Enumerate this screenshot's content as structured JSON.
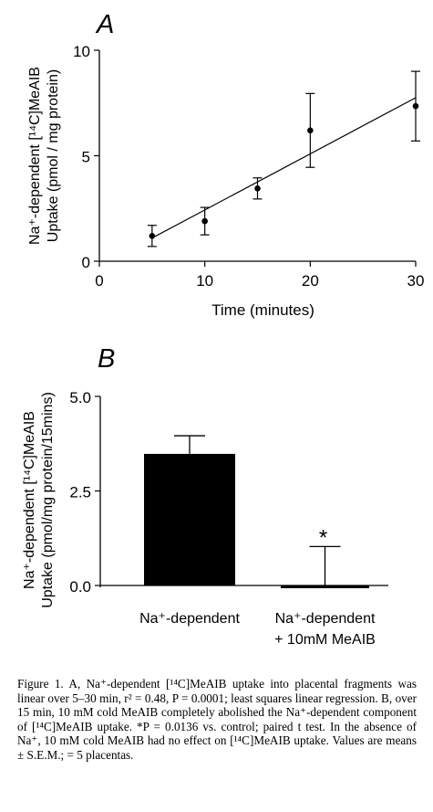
{
  "chart_data": [
    {
      "type": "scatter",
      "panel_letter": "A",
      "ylabel_line1": "Na⁺-dependent [¹⁴C]MeAIB",
      "ylabel_line2": "Uptake (pmol / mg protein)",
      "xlabel": "Time (minutes)",
      "xlim": [
        0,
        30
      ],
      "ylim": [
        0,
        10
      ],
      "xticks": [
        "0",
        "10",
        "20",
        "30"
      ],
      "yticks": [
        "0",
        "5",
        "10"
      ],
      "points": [
        {
          "x": 5,
          "y": 1.2,
          "err": 0.5
        },
        {
          "x": 10,
          "y": 1.9,
          "err": 0.65
        },
        {
          "x": 15,
          "y": 3.45,
          "err": 0.5
        },
        {
          "x": 20,
          "y": 6.2,
          "err": 1.75
        },
        {
          "x": 30,
          "y": 7.35,
          "err": 1.65
        }
      ],
      "regression_line": {
        "x": [
          5,
          30
        ],
        "y": [
          1.1,
          7.75
        ]
      }
    },
    {
      "type": "bar",
      "panel_letter": "B",
      "ylabel_line1": "Na⁺-dependent [¹⁴C]MeAIB",
      "ylabel_line2": "Uptake (pmol/mg protein/15mins)",
      "ylim": [
        0,
        5
      ],
      "yticks": [
        "0.0",
        "2.5",
        "5.0"
      ],
      "categories": [
        {
          "line1": "Na⁺-dependent",
          "line2": ""
        },
        {
          "line1": "Na⁺-dependent",
          "line2": "+ 10mM MeAIB"
        }
      ],
      "values": [
        3.48,
        -0.05
      ],
      "errors": [
        0.48,
        1.08
      ],
      "annotation": "*"
    }
  ],
  "caption": {
    "label": "Figure 1.",
    "text": "A, Na⁺-dependent [¹⁴C]MeAIB uptake into placental fragments was linear over 5–30 min, r² = 0.48, P = 0.0001; least squares linear regression. B, over 15 min, 10 mM cold MeAIB completely abolished the Na⁺-dependent component of [¹⁴C]MeAIB uptake. *P = 0.0136 vs. control; paired t test. In the absence of Na⁺, 10 mM cold MeAIB had no effect on [¹⁴C]MeAIB uptake. Values are means ± S.E.M.; = 5 placentas."
  }
}
